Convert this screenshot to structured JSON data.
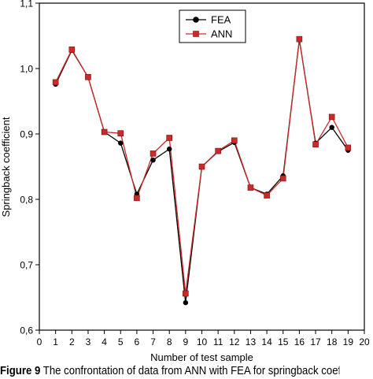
{
  "chart_data": {
    "type": "line",
    "title": "",
    "xlabel": "Number of test sample",
    "ylabel": "Springback coefficient",
    "xlim": [
      0,
      20
    ],
    "ylim": [
      0.6,
      1.1
    ],
    "x_ticks": [
      0,
      1,
      2,
      3,
      4,
      5,
      6,
      7,
      8,
      9,
      10,
      11,
      12,
      13,
      14,
      15,
      16,
      17,
      18,
      19,
      20
    ],
    "y_ticks": [
      0.6,
      0.7,
      0.8,
      0.9,
      1.0,
      1.1
    ],
    "y_tick_labels": [
      "0,6",
      "0,7",
      "0,8",
      "0,9",
      "1,0",
      "1,1"
    ],
    "grid": false,
    "legend_position": "top-center",
    "x": [
      1,
      2,
      3,
      4,
      5,
      6,
      7,
      8,
      9,
      10,
      11,
      12,
      13,
      14,
      15,
      16,
      17,
      18,
      19
    ],
    "series": [
      {
        "name": "FEA",
        "color": "#000000",
        "marker": "circle",
        "values": [
          0.976,
          1.028,
          0.987,
          0.903,
          0.886,
          0.808,
          0.86,
          0.877,
          0.642,
          0.85,
          0.873,
          0.887,
          0.818,
          0.808,
          0.836,
          1.044,
          0.886,
          0.91,
          0.875
        ]
      },
      {
        "name": "ANN",
        "color": "#cc2a2a",
        "marker": "square",
        "values": [
          0.979,
          1.029,
          0.987,
          0.903,
          0.901,
          0.802,
          0.87,
          0.894,
          0.656,
          0.85,
          0.874,
          0.89,
          0.818,
          0.806,
          0.832,
          1.045,
          0.884,
          0.926,
          0.879
        ]
      }
    ]
  },
  "caption": {
    "label": "Figure 9",
    "text": " The confrontation of data from ANN with FEA for springback coefficient"
  }
}
